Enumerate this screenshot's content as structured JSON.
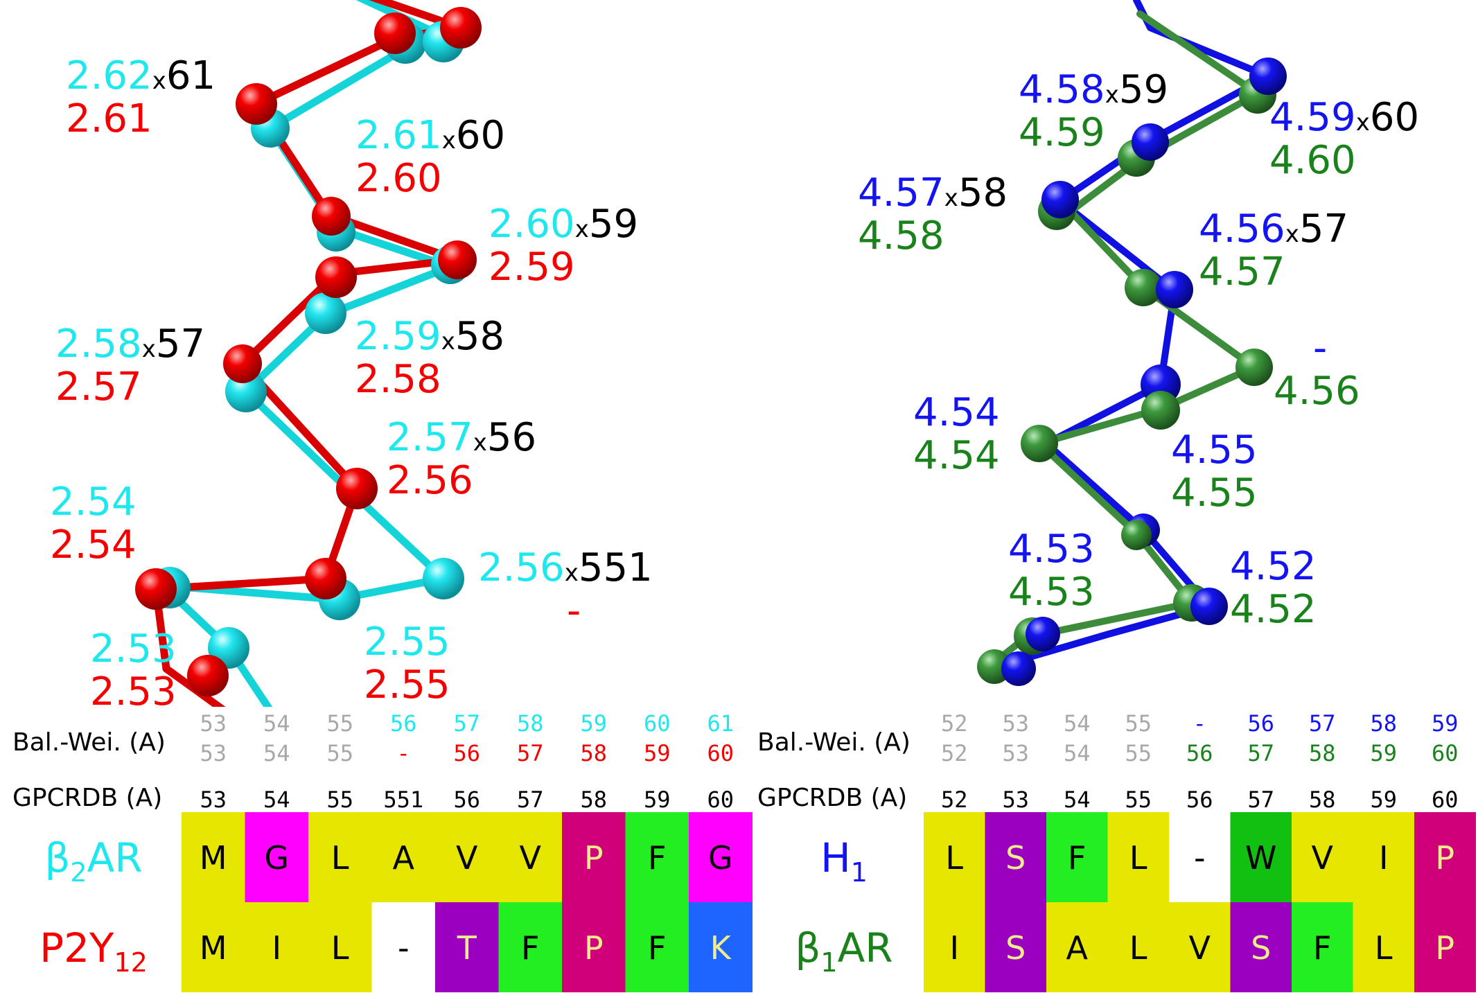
{
  "colors": {
    "cyan": "#1EE8EE",
    "red": "#F40000",
    "blue": "#1414F0",
    "green": "#1A821A",
    "black": "#000000",
    "gray": "#A8A8A8",
    "aa_yellow": "#E6E600",
    "aa_magenta": "#FF00FF",
    "aa_purple": "#9B00C0",
    "aa_green": "#22EE22",
    "aa_darkgreen": "#11C011",
    "aa_crimson": "#D0007A",
    "aa_blue": "#1E64FF",
    "aa_white": "#FFFFFF",
    "txt_light": "#F0EC8C"
  },
  "left_panel": {
    "labels": [
      {
        "top": "2.62",
        "sep": "x",
        "gpcr": "61",
        "bottom": "2.61"
      },
      {
        "top": "2.61",
        "sep": "x",
        "gpcr": "60",
        "bottom": "2.60"
      },
      {
        "top": "2.60",
        "sep": "x",
        "gpcr": "59",
        "bottom": "2.59"
      },
      {
        "top": "2.59",
        "sep": "x",
        "gpcr": "58",
        "bottom": "2.58"
      },
      {
        "top": "2.58",
        "sep": "x",
        "gpcr": "57",
        "bottom": "2.57"
      },
      {
        "top": "2.57",
        "sep": "x",
        "gpcr": "56",
        "bottom": "2.56"
      },
      {
        "top": "2.54",
        "sep": "",
        "gpcr": "",
        "bottom": "2.54"
      },
      {
        "top": "2.56",
        "sep": "x",
        "gpcr": "551",
        "bottom": "-"
      },
      {
        "top": "2.53",
        "sep": "",
        "gpcr": "",
        "bottom": "2.53"
      },
      {
        "top": "2.55",
        "sep": "",
        "gpcr": "",
        "bottom": "2.55"
      }
    ]
  },
  "right_panel": {
    "labels": [
      {
        "top": "4.58",
        "sep": "x",
        "gpcr": "59",
        "bottom": "4.59"
      },
      {
        "top": "4.59",
        "sep": "x",
        "gpcr": "60",
        "bottom": "4.60"
      },
      {
        "top": "4.57",
        "sep": "x",
        "gpcr": "58",
        "bottom": "4.58"
      },
      {
        "top": "4.56",
        "sep": "x",
        "gpcr": "57",
        "bottom": "4.57"
      },
      {
        "top": "-",
        "sep": "",
        "gpcr": "",
        "bottom": "4.56"
      },
      {
        "top": "4.54",
        "sep": "",
        "gpcr": "",
        "bottom": "4.54"
      },
      {
        "top": "4.55",
        "sep": "",
        "gpcr": "",
        "bottom": "4.55"
      },
      {
        "top": "4.53",
        "sep": "",
        "gpcr": "",
        "bottom": "4.53"
      },
      {
        "top": "4.52",
        "sep": "",
        "gpcr": "",
        "bottom": "4.52"
      }
    ]
  },
  "left_table": {
    "balwei_label": "Bal.-Wei. (A)",
    "gpcrdb_label": "GPCRDB (A)",
    "balwei_top": [
      "53",
      "54",
      "55",
      "56",
      "57",
      "58",
      "59",
      "60",
      "61"
    ],
    "balwei_bottom": [
      "53",
      "54",
      "55",
      "-",
      "56",
      "57",
      "58",
      "59",
      "60"
    ],
    "gpcrdb": [
      "53",
      "54",
      "55",
      "551",
      "56",
      "57",
      "58",
      "59",
      "60"
    ],
    "receptor1": {
      "name": "β",
      "sub": "2",
      "rest": "AR"
    },
    "receptor2": {
      "name": "P2Y",
      "sub": "12",
      "rest": ""
    },
    "seq1": [
      "M",
      "G",
      "L",
      "A",
      "V",
      "V",
      "P",
      "F",
      "G"
    ],
    "seq2": [
      "M",
      "I",
      "L",
      "-",
      "T",
      "F",
      "P",
      "F",
      "K"
    ]
  },
  "right_table": {
    "balwei_label": "Bal.-Wei. (A)",
    "gpcrdb_label": "GPCRDB (A)",
    "balwei_top": [
      "52",
      "53",
      "54",
      "55",
      "-",
      "56",
      "57",
      "58",
      "59"
    ],
    "balwei_bottom": [
      "52",
      "53",
      "54",
      "55",
      "56",
      "57",
      "58",
      "59",
      "60"
    ],
    "gpcrdb": [
      "52",
      "53",
      "54",
      "55",
      "56",
      "57",
      "58",
      "59",
      "60"
    ],
    "receptor1": {
      "name": "H",
      "sub": "1",
      "rest": ""
    },
    "receptor2": {
      "name": "β",
      "sub": "1",
      "rest": "AR"
    },
    "seq1": [
      "L",
      "S",
      "F",
      "L",
      "-",
      "W",
      "V",
      "I",
      "P"
    ],
    "seq2": [
      "I",
      "S",
      "A",
      "L",
      "V",
      "S",
      "F",
      "L",
      "P"
    ]
  }
}
